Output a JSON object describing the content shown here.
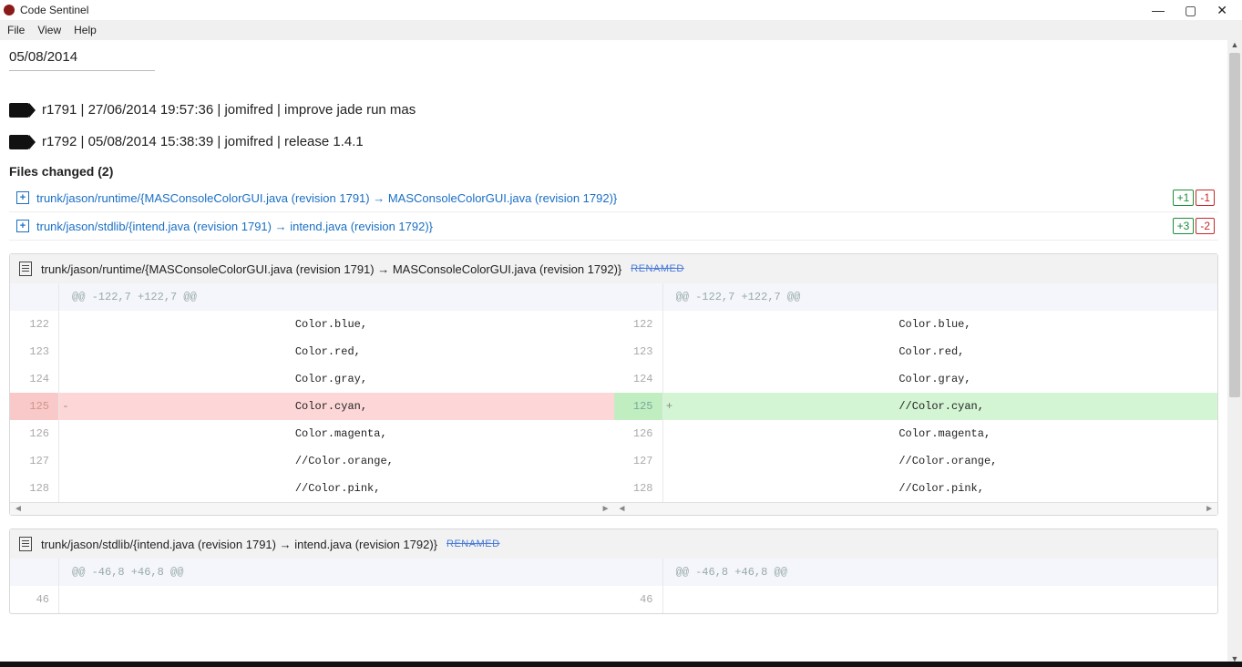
{
  "window": {
    "title": "Code Sentinel"
  },
  "menu": {
    "file": "File",
    "view": "View",
    "help": "Help"
  },
  "date_header": "05/08/2014",
  "commits": [
    {
      "text": "r1791 | 27/06/2014 19:57:36 | jomifred | improve jade run mas"
    },
    {
      "text": "r1792 | 05/08/2014 15:38:39 | jomifred | release 1.4.1"
    }
  ],
  "files_changed_label": "Files changed (2)",
  "file_links": [
    {
      "label": "trunk/jason/runtime/{MASConsoleColorGUI.java (revision 1791) → MASConsoleColorGUI.java (revision 1792)}",
      "plus": "+1",
      "minus": "-1"
    },
    {
      "label": "trunk/jason/stdlib/{intend.java (revision 1791) → intend.java (revision 1792)}",
      "plus": "+3",
      "minus": "-2"
    }
  ],
  "diffs": [
    {
      "header": "trunk/jason/runtime/{MASConsoleColorGUI.java (revision 1791) → MASConsoleColorGUI.java (revision 1792)}",
      "renamed_badge": "RENAMED",
      "hunk": "@@ -122,7 +122,7 @@",
      "left": [
        {
          "n": "122",
          "m": "",
          "c": "                                  Color.blue,"
        },
        {
          "n": "123",
          "m": "",
          "c": "                                  Color.red,"
        },
        {
          "n": "124",
          "m": "",
          "c": "                                  Color.gray,"
        },
        {
          "n": "125",
          "m": "-",
          "c": "                                  Color.cyan,",
          "cls": "del-row"
        },
        {
          "n": "126",
          "m": "",
          "c": "                                  Color.magenta,"
        },
        {
          "n": "127",
          "m": "",
          "c": "                                  //Color.orange,"
        },
        {
          "n": "128",
          "m": "",
          "c": "                                  //Color.pink,"
        }
      ],
      "right": [
        {
          "n": "122",
          "m": "",
          "c": "                                  Color.blue,"
        },
        {
          "n": "123",
          "m": "",
          "c": "                                  Color.red,"
        },
        {
          "n": "124",
          "m": "",
          "c": "                                  Color.gray,"
        },
        {
          "n": "125",
          "m": "+",
          "c": "                                  //Color.cyan,",
          "cls": "add-row"
        },
        {
          "n": "126",
          "m": "",
          "c": "                                  Color.magenta,"
        },
        {
          "n": "127",
          "m": "",
          "c": "                                  //Color.orange,"
        },
        {
          "n": "128",
          "m": "",
          "c": "                                  //Color.pink,"
        }
      ]
    },
    {
      "header": "trunk/jason/stdlib/{intend.java (revision 1791) → intend.java (revision 1792)}",
      "renamed_badge": "RENAMED",
      "hunk": "@@ -46,8 +46,8 @@",
      "left": [
        {
          "n": "46",
          "m": "",
          "c": ""
        }
      ],
      "right": [
        {
          "n": "46",
          "m": "",
          "c": ""
        }
      ]
    }
  ],
  "colors": {
    "link": "#1a6fc4",
    "add_bg": "#d3f5d3",
    "del_bg": "#fdd7d7",
    "hunk_bg": "#f4f6fb",
    "header_bg": "#f2f2f2"
  }
}
